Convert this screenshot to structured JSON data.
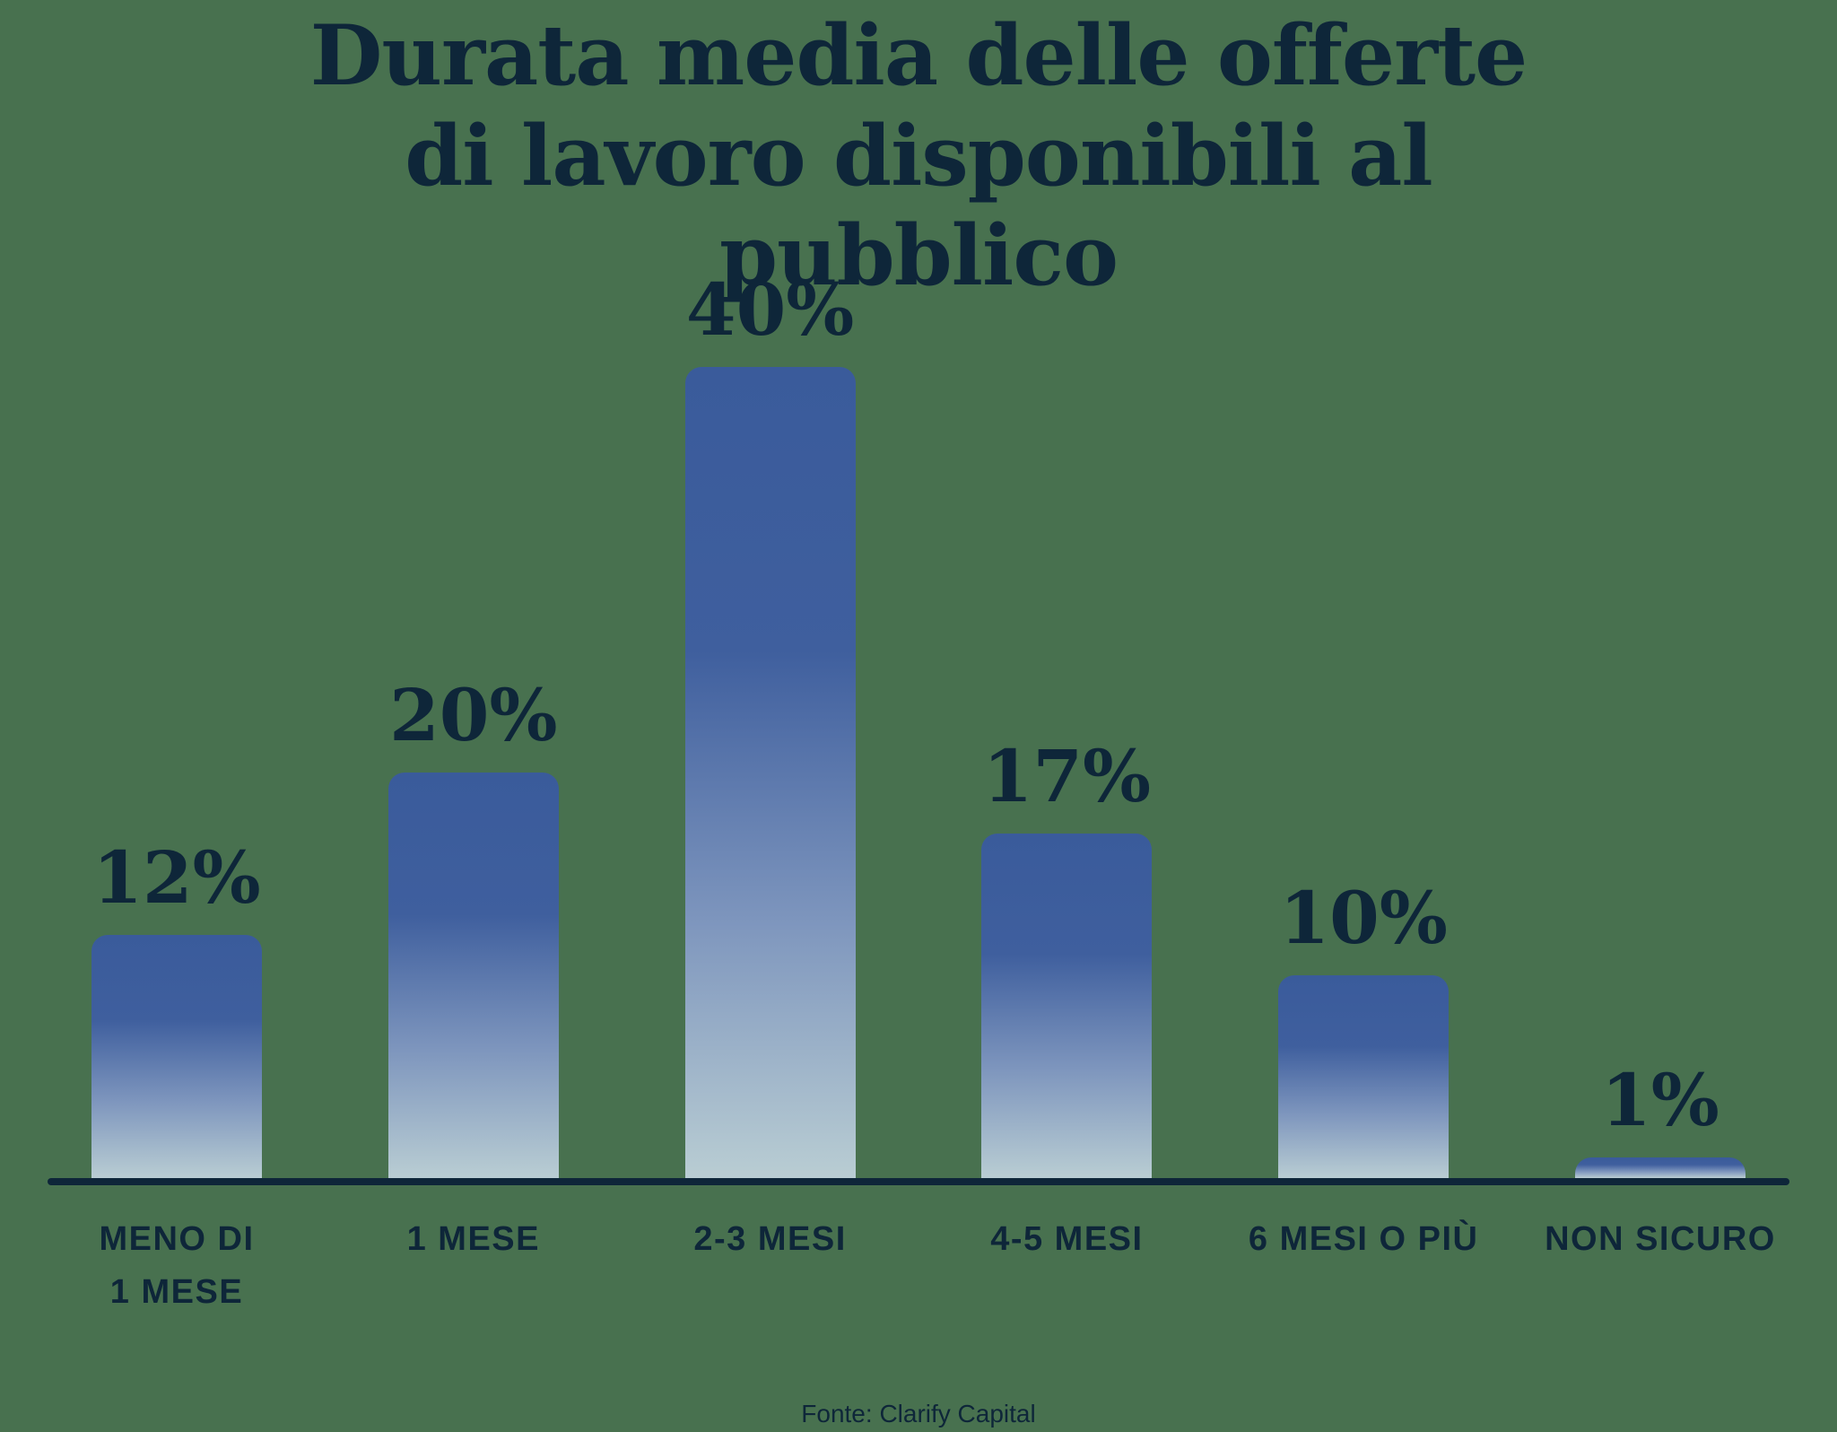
{
  "title": "Durata media delle offerte di lavoro disponibili al pubblico",
  "source": "Fonte: Clarify Capital",
  "colors": {
    "background": "#48714f",
    "text": "#0e2639",
    "axis": "#0e2639",
    "bar_gradient_top": "#3a5b9b",
    "bar_gradient_bottom": "#b9cdd3"
  },
  "chart_data": {
    "type": "bar",
    "title": "Durata media delle offerte di lavoro disponibili al pubblico",
    "categories": [
      "MENO DI 1 MESE",
      "1 MESE",
      "2-3 MESI",
      "4-5 MESI",
      "6 MESI O PIÙ",
      "NON SICURO"
    ],
    "x_labels": [
      "MENO DI\n1 MESE",
      "1 MESE",
      "2-3 MESI",
      "4-5 MESI",
      "6 MESI O PIÙ",
      "NON SICURO"
    ],
    "values": [
      12,
      20,
      40,
      17,
      10,
      1
    ],
    "value_labels": [
      "12%",
      "20%",
      "40%",
      "17%",
      "10%",
      "1%"
    ],
    "xlabel": "",
    "ylabel": "",
    "ylim": [
      0,
      40
    ],
    "grid": false,
    "legend": false,
    "source": "Fonte: Clarify Capital"
  }
}
